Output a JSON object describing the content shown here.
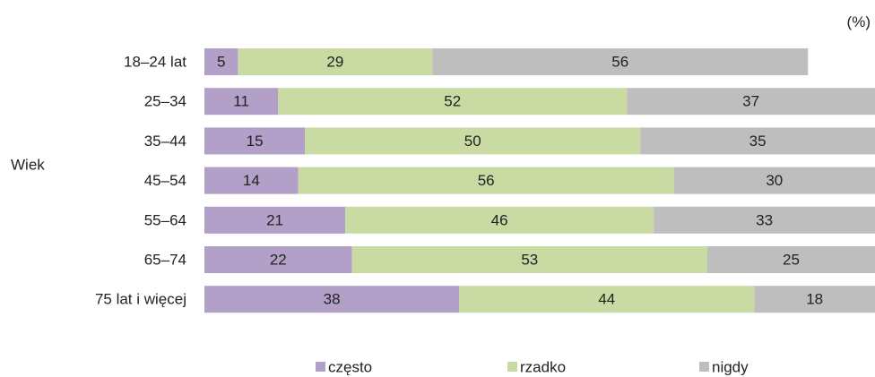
{
  "chart_data": {
    "type": "bar",
    "orientation": "horizontal",
    "stacked": true,
    "unit_label": "(%)",
    "group_label": "Wiek",
    "categories": [
      "18–24 lat",
      "25–34",
      "35–44",
      "45–54",
      "55–64",
      "65–74",
      "75 lat i więcej"
    ],
    "series": [
      {
        "name": "często",
        "color": "#b2a0c8",
        "values": [
          5,
          11,
          15,
          14,
          21,
          22,
          38
        ]
      },
      {
        "name": "rzadko",
        "color": "#c9dba3",
        "values": [
          29,
          52,
          50,
          56,
          46,
          53,
          44
        ]
      },
      {
        "name": "nigdy",
        "color": "#bebebe",
        "values": [
          56,
          37,
          35,
          30,
          33,
          25,
          18
        ]
      }
    ],
    "xlim": [
      0,
      100
    ],
    "grid": false,
    "legend_position": "bottom"
  }
}
